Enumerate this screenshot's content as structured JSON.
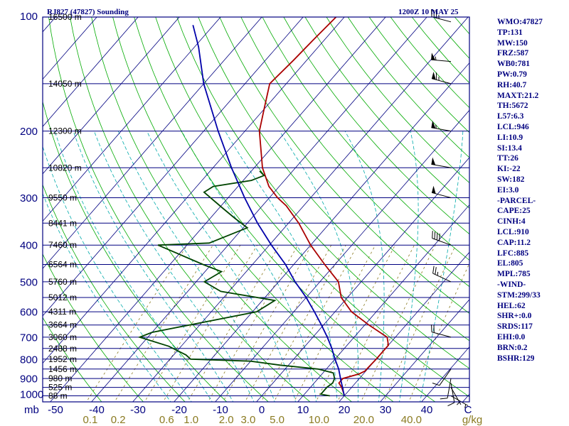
{
  "header": {
    "station": "RJ827 (47827) Sounding",
    "time": "1200Z 10 MAY 25"
  },
  "chart_data": {
    "type": "skew-t",
    "pressure_axis": {
      "unit_label": "mb",
      "levels": [
        100,
        200,
        300,
        400,
        500,
        600,
        700,
        800,
        900,
        1000
      ],
      "log_scale": true
    },
    "height_labels": [
      {
        "p": 100,
        "label": "16500 m"
      },
      {
        "p": 150,
        "label": "14050 m"
      },
      {
        "p": 200,
        "label": "12300 m"
      },
      {
        "p": 250,
        "label": "10820 m"
      },
      {
        "p": 300,
        "label": "9550 m"
      },
      {
        "p": 350,
        "label": "8441 m"
      },
      {
        "p": 400,
        "label": "7460 m"
      },
      {
        "p": 450,
        "label": "6564 m"
      },
      {
        "p": 500,
        "label": "5760 m"
      },
      {
        "p": 550,
        "label": "5012 m"
      },
      {
        "p": 600,
        "label": "4311 m"
      },
      {
        "p": 650,
        "label": "3664 m"
      },
      {
        "p": 700,
        "label": "3060 m"
      },
      {
        "p": 750,
        "label": "2488 m"
      },
      {
        "p": 800,
        "label": "1952 m"
      },
      {
        "p": 850,
        "label": "1456 m"
      },
      {
        "p": 900,
        "label": "980 m"
      },
      {
        "p": 950,
        "label": "525 m"
      },
      {
        "p": 1000,
        "label": "88 m"
      }
    ],
    "temperature_axis": {
      "labels": [
        "-50",
        "-40",
        "-30",
        "-20",
        "-10",
        "0",
        "10",
        "20",
        "30",
        "40",
        "C"
      ],
      "values": [
        -50,
        -40,
        -30,
        -20,
        -10,
        0,
        10,
        20,
        30,
        40,
        50
      ]
    },
    "mixing_ratio_axis": {
      "unit_label": "g/kg",
      "labels": [
        "0.1",
        "0.2",
        "0.6",
        "1.0",
        "2.0",
        "3.0",
        "5.0",
        "10.0",
        "20.0",
        "40.0"
      ],
      "values": [
        0.1,
        0.2,
        0.6,
        1.0,
        2.0,
        3.0,
        5.0,
        10.0,
        20.0,
        40.0
      ]
    },
    "series": [
      {
        "role": "temperature",
        "color": "#aa0000",
        "points": [
          {
            "p": 1000,
            "t": 20.0
          },
          {
            "p": 990,
            "t": 19.6
          },
          {
            "p": 950,
            "t": 17.6
          },
          {
            "p": 925,
            "t": 16.0
          },
          {
            "p": 900,
            "t": 16.0
          },
          {
            "p": 875,
            "t": 19.0
          },
          {
            "p": 860,
            "t": 19.8
          },
          {
            "p": 850,
            "t": 19.8
          },
          {
            "p": 800,
            "t": 20.0
          },
          {
            "p": 780,
            "t": 20.0
          },
          {
            "p": 735,
            "t": 20.0
          },
          {
            "p": 700,
            "t": 18.0
          },
          {
            "p": 650,
            "t": 11.0
          },
          {
            "p": 600,
            "t": 4.0
          },
          {
            "p": 550,
            "t": -1.5
          },
          {
            "p": 500,
            "t": -5.5
          },
          {
            "p": 450,
            "t": -12.5
          },
          {
            "p": 400,
            "t": -20.0
          },
          {
            "p": 350,
            "t": -27.5
          },
          {
            "p": 315,
            "t": -34.2
          },
          {
            "p": 300,
            "t": -38.0
          },
          {
            "p": 280,
            "t": -42.5
          },
          {
            "p": 250,
            "t": -48.0
          },
          {
            "p": 200,
            "t": -56.5
          },
          {
            "p": 175,
            "t": -60.0
          },
          {
            "p": 150,
            "t": -64.0
          },
          {
            "p": 130,
            "t": -63.2
          },
          {
            "p": 115,
            "t": -62.7
          },
          {
            "p": 100,
            "t": -62.0
          }
        ]
      },
      {
        "role": "dewpoint",
        "color": "#004400",
        "points": [
          {
            "p": 1000,
            "t": 16.5
          },
          {
            "p": 990,
            "t": 14.0
          },
          {
            "p": 950,
            "t": 14.0
          },
          {
            "p": 925,
            "t": 14.5
          },
          {
            "p": 900,
            "t": 14.0
          },
          {
            "p": 870,
            "t": 12.5
          },
          {
            "p": 850,
            "t": 8.0
          },
          {
            "p": 830,
            "t": -2.0
          },
          {
            "p": 810,
            "t": -10.0
          },
          {
            "p": 800,
            "t": -25.0
          },
          {
            "p": 780,
            "t": -27.0
          },
          {
            "p": 740,
            "t": -33.0
          },
          {
            "p": 700,
            "t": -42.0
          },
          {
            "p": 680,
            "t": -40.0
          },
          {
            "p": 600,
            "t": -19.0
          },
          {
            "p": 560,
            "t": -17.0
          },
          {
            "p": 530,
            "t": -32.0
          },
          {
            "p": 500,
            "t": -38.0
          },
          {
            "p": 470,
            "t": -36.0
          },
          {
            "p": 450,
            "t": -42.0
          },
          {
            "p": 400,
            "t": -57.0
          },
          {
            "p": 395,
            "t": -45.0
          },
          {
            "p": 360,
            "t": -39.0
          },
          {
            "p": 340,
            "t": -44.0
          },
          {
            "p": 320,
            "t": -49.0
          },
          {
            "p": 290,
            "t": -57.0
          },
          {
            "p": 280,
            "t": -56.0
          },
          {
            "p": 270,
            "t": -48.0
          },
          {
            "p": 262,
            "t": -46.0
          },
          {
            "p": 255,
            "t": -48.0
          }
        ]
      },
      {
        "role": "parcel",
        "color": "#0000aa",
        "points": [
          {
            "p": 1000,
            "t": 20.0
          },
          {
            "p": 950,
            "t": 17.8
          },
          {
            "p": 910,
            "t": 15.9
          },
          {
            "p": 850,
            "t": 13.0
          },
          {
            "p": 800,
            "t": 10.0
          },
          {
            "p": 750,
            "t": 7.0
          },
          {
            "p": 700,
            "t": 3.5
          },
          {
            "p": 650,
            "t": -0.5
          },
          {
            "p": 600,
            "t": -5.0
          },
          {
            "p": 550,
            "t": -10.0
          },
          {
            "p": 500,
            "t": -16.0
          },
          {
            "p": 450,
            "t": -22.0
          },
          {
            "p": 400,
            "t": -29.5
          },
          {
            "p": 350,
            "t": -37.5
          },
          {
            "p": 300,
            "t": -46.0
          },
          {
            "p": 250,
            "t": -55.5
          },
          {
            "p": 200,
            "t": -66.5
          },
          {
            "p": 150,
            "t": -80.0
          },
          {
            "p": 120,
            "t": -89.0
          },
          {
            "p": 105,
            "t": -95.0
          }
        ]
      }
    ],
    "wind_barbs": [
      {
        "p": 103,
        "dir": 285,
        "spd": 35
      },
      {
        "p": 131,
        "dir": 275,
        "spd": 55
      },
      {
        "p": 150,
        "dir": 285,
        "spd": 65
      },
      {
        "p": 200,
        "dir": 280,
        "spd": 55
      },
      {
        "p": 250,
        "dir": 280,
        "spd": 50
      },
      {
        "p": 300,
        "dir": 285,
        "spd": 50
      },
      {
        "p": 400,
        "dir": 290,
        "spd": 40
      },
      {
        "p": 500,
        "dir": 295,
        "spd": 25
      },
      {
        "p": 700,
        "dir": 285,
        "spd": 20
      },
      {
        "p": 850,
        "dir": 215,
        "spd": 10
      },
      {
        "p": 900,
        "dir": 190,
        "spd": 10
      },
      {
        "p": 925,
        "dir": 170,
        "spd": 10
      },
      {
        "p": 950,
        "dir": 150,
        "spd": 5
      },
      {
        "p": 1000,
        "dir": 120,
        "spd": 5
      }
    ]
  },
  "indices": [
    "WMO:47827",
    "TP:131",
    "MW:150",
    "FRZ:587",
    "WB0:781",
    "PW:0.79",
    "RH:40.7",
    "MAXT:21.2",
    "TH:5672",
    "L57:6.3",
    "LCL:946",
    "LI:10.9",
    "SI:13.4",
    "TT:26",
    "KI:-22",
    "SW:182",
    "EI:3.0",
    "-PARCEL-",
    "CAPE:25",
    "CINH:4",
    "LCL:910",
    "CAP:11.2",
    "LFC:885",
    "EL:805",
    "MPL:785",
    "-WIND-",
    "STM:299/33",
    "HEL:62",
    "SHR+:0.0",
    "SRDS:117",
    "EHI:0.0",
    "BRN:0.2",
    "BSHR:129"
  ],
  "colors": {
    "isobar": "#000080",
    "isotherm": "#000080",
    "dry_adiabat": "#00aa00",
    "moist_adiabat": "#00aaaa",
    "mixing_ratio": "#8a7a20",
    "temperature": "#aa0000",
    "dewpoint": "#004400",
    "parcel": "#0000aa",
    "wind_barb": "#000000"
  }
}
